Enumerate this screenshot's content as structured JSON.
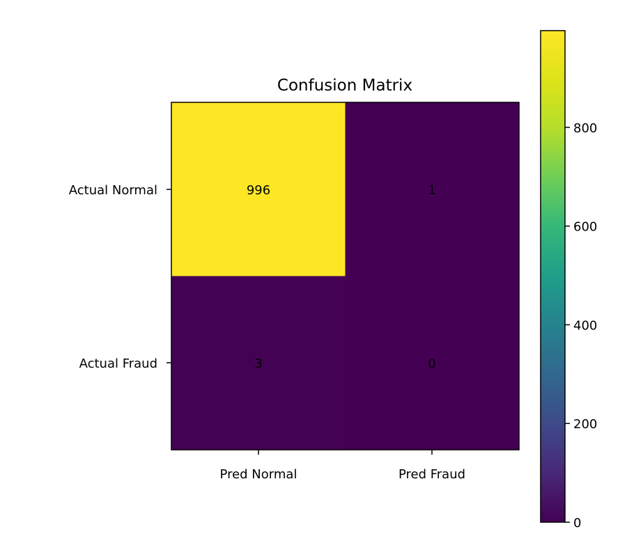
{
  "chart_data": {
    "type": "heatmap",
    "title": "Confusion Matrix",
    "row_labels": [
      "Actual Normal",
      "Actual Fraud"
    ],
    "col_labels": [
      "Pred Normal",
      "Pred Fraud"
    ],
    "values": [
      [
        996,
        1
      ],
      [
        3,
        0
      ]
    ],
    "cell_labels": [
      "996",
      "1",
      "3",
      "0"
    ],
    "colorscale": "viridis",
    "colorbar": {
      "range": [
        0,
        996
      ],
      "ticks": [
        0,
        200,
        400,
        600,
        800
      ],
      "tick_labels": [
        "0",
        "200",
        "400",
        "600",
        "800"
      ]
    },
    "xlabel": "",
    "ylabel": "",
    "grid": false
  }
}
